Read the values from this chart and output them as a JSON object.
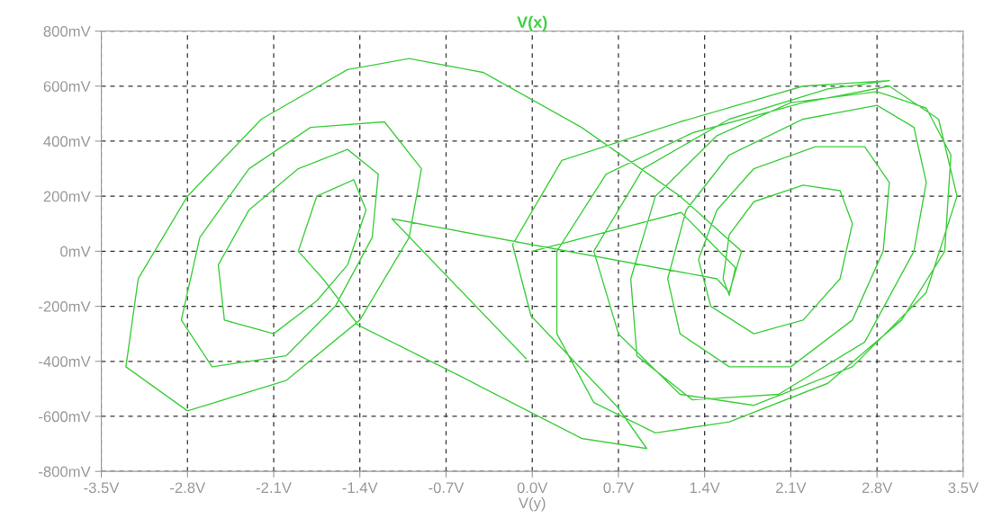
{
  "chart_data": {
    "type": "line",
    "title": "V(x)",
    "xlabel": "V(y)",
    "xlim": [
      -3.5,
      3.5
    ],
    "xticks": [
      {
        "value": -3.5,
        "label": "-3.5V"
      },
      {
        "value": -2.8,
        "label": "-2.8V"
      },
      {
        "value": -2.1,
        "label": "-2.1V"
      },
      {
        "value": -1.4,
        "label": "-1.4V"
      },
      {
        "value": -0.7,
        "label": "-0.7V"
      },
      {
        "value": 0.0,
        "label": "0.0V"
      },
      {
        "value": 0.7,
        "label": "0.7V"
      },
      {
        "value": 1.4,
        "label": "1.4V"
      },
      {
        "value": 2.1,
        "label": "2.1V"
      },
      {
        "value": 2.8,
        "label": "2.8V"
      },
      {
        "value": 3.5,
        "label": "3.5V"
      }
    ],
    "ylim": [
      -800,
      800
    ],
    "yticks": [
      {
        "value": -800,
        "label": "-800mV"
      },
      {
        "value": -600,
        "label": "-600mV"
      },
      {
        "value": -400,
        "label": "-400mV"
      },
      {
        "value": -200,
        "label": "-200mV"
      },
      {
        "value": 0,
        "label": "0mV"
      },
      {
        "value": 200,
        "label": "200mV"
      },
      {
        "value": 400,
        "label": "400mV"
      },
      {
        "value": 600,
        "label": "600mV"
      },
      {
        "value": 800,
        "label": "800mV"
      }
    ],
    "grid": true,
    "line_style": "solid",
    "marker": "none",
    "series": [
      {
        "color": "#3fcf3f",
        "x": [
          0.0,
          1.21,
          1.65,
          1.6,
          1.55,
          1.6,
          1.8,
          2.2,
          2.5,
          2.6,
          2.5,
          2.2,
          1.8,
          1.45,
          1.35,
          1.5,
          1.8,
          2.3,
          2.7,
          2.9,
          2.85,
          2.6,
          2.1,
          1.6,
          1.2,
          1.1,
          1.25,
          1.6,
          2.2,
          2.8,
          3.1,
          3.2,
          3.1,
          2.7,
          2.0,
          1.3,
          0.85,
          0.8,
          1.0,
          1.5,
          2.1,
          2.8,
          3.2,
          3.4,
          3.35,
          3.0,
          2.4,
          1.6,
          1.0,
          0.5,
          0.2,
          0.2,
          0.6,
          1.3,
          2.2,
          2.9,
          3.3,
          3.45,
          3.2,
          2.6,
          1.8,
          1.2,
          0.7,
          0.5,
          0.9,
          1.6,
          2.4,
          2.9,
          2.2,
          1.2,
          0.24,
          -0.16,
          -0.01,
          0.69,
          0.93,
          0.4,
          -0.26,
          -0.6,
          -1.41,
          -1.7,
          -1.9,
          -1.75,
          -1.45,
          -1.35,
          -1.5,
          -1.75,
          -2.1,
          -2.5,
          -2.55,
          -2.3,
          -1.9,
          -1.5,
          -1.25,
          -1.3,
          -1.6,
          -2.0,
          -2.6,
          -2.85,
          -2.7,
          -2.3,
          -1.8,
          -1.2,
          -0.9,
          -1.0,
          -1.4,
          -2.0,
          -2.8,
          -3.3,
          -3.2,
          -2.8,
          -2.2,
          -1.5,
          -1.0,
          -0.4,
          0.4,
          1.2,
          1.7,
          1.6,
          1.5,
          -1.14,
          -0.05
        ],
        "values": [
          0,
          141,
          -60,
          -160,
          -100,
          60,
          180,
          240,
          220,
          100,
          -100,
          -250,
          -300,
          -200,
          -30,
          150,
          300,
          380,
          380,
          250,
          0,
          -250,
          -420,
          -420,
          -300,
          -100,
          150,
          350,
          480,
          530,
          450,
          250,
          0,
          -330,
          -520,
          -540,
          -380,
          -100,
          200,
          420,
          540,
          580,
          520,
          350,
          0,
          -250,
          -480,
          -620,
          -660,
          -550,
          -300,
          0,
          280,
          430,
          540,
          600,
          480,
          200,
          -150,
          -420,
          -560,
          -520,
          -300,
          0,
          300,
          480,
          590,
          620,
          600,
          470,
          330,
          24,
          -235,
          -565,
          -717,
          -680,
          -529,
          -450,
          -270,
          -100,
          0,
          200,
          260,
          150,
          -50,
          -180,
          -300,
          -250,
          -50,
          150,
          300,
          370,
          280,
          50,
          -200,
          -380,
          -420,
          -250,
          50,
          300,
          450,
          470,
          300,
          50,
          -250,
          -470,
          -580,
          -420,
          -100,
          200,
          480,
          660,
          700,
          650,
          450,
          200,
          0,
          -150,
          -100,
          118,
          -390
        ]
      }
    ]
  }
}
